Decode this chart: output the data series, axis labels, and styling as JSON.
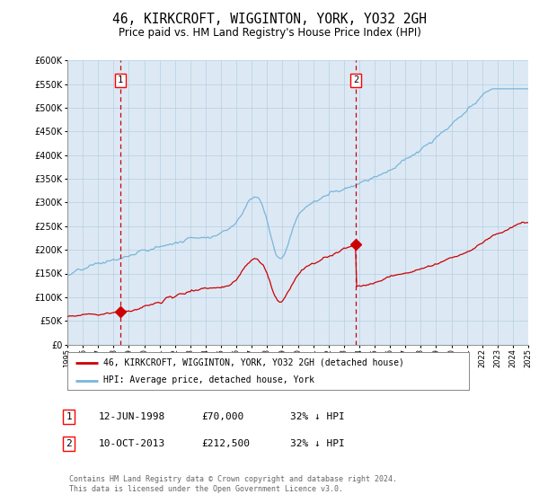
{
  "title": "46, KIRKCROFT, WIGGINTON, YORK, YO32 2GH",
  "subtitle": "Price paid vs. HM Land Registry's House Price Index (HPI)",
  "title_fontsize": 10.5,
  "subtitle_fontsize": 8.5,
  "background_color": "#ffffff",
  "plot_bg_color": "#dce9f5",
  "grid_color": "#b8cfe0",
  "hpi_line_color": "#7ab5d8",
  "price_line_color": "#cc0000",
  "sale1_date_num": 1998.45,
  "sale1_price": 70000,
  "sale2_date_num": 2013.78,
  "sale2_price": 212500,
  "vline_color": "#cc0000",
  "marker_color": "#cc0000",
  "ylim": [
    0,
    600000
  ],
  "yticks": [
    0,
    50000,
    100000,
    150000,
    200000,
    250000,
    300000,
    350000,
    400000,
    450000,
    500000,
    550000,
    600000
  ],
  "legend_label_price": "46, KIRKCROFT, WIGGINTON, YORK, YO32 2GH (detached house)",
  "legend_label_hpi": "HPI: Average price, detached house, York",
  "footnote": "Contains HM Land Registry data © Crown copyright and database right 2024.\nThis data is licensed under the Open Government Licence v3.0.",
  "table_row1": [
    "1",
    "12-JUN-1998",
    "£70,000",
    "32% ↓ HPI"
  ],
  "table_row2": [
    "2",
    "10-OCT-2013",
    "£212,500",
    "32% ↓ HPI"
  ]
}
